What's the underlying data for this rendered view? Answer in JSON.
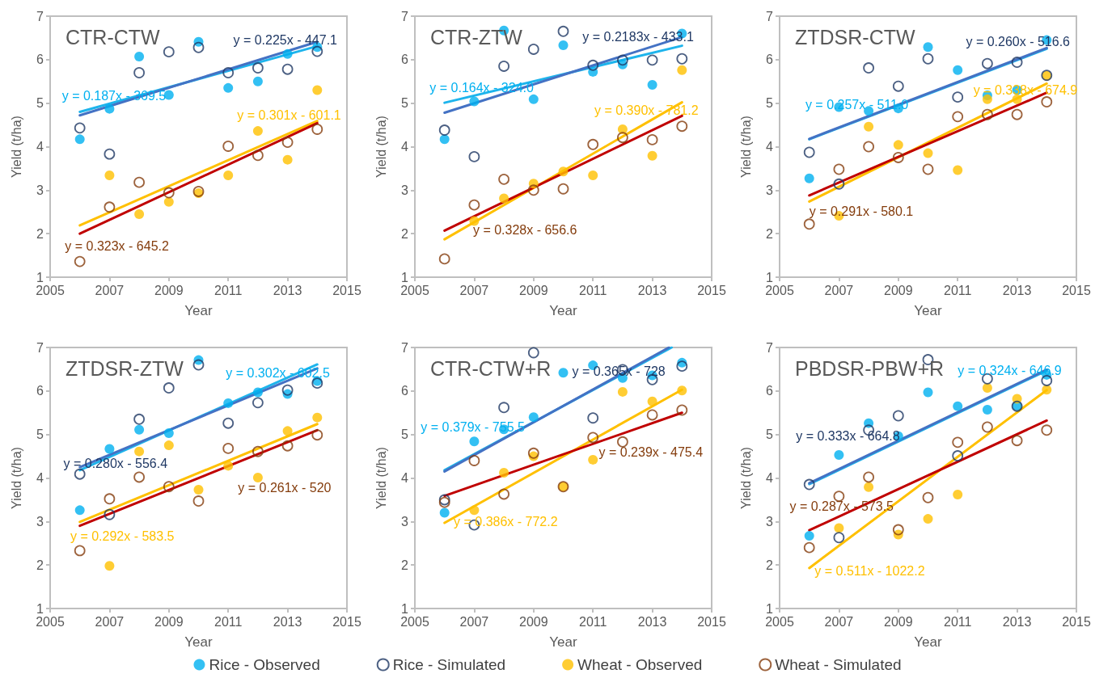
{
  "chart_data": [
    {
      "type": "scatter",
      "title": "CTR-CTW",
      "xlabel": "Year",
      "ylabel": "Yield (t/ha)",
      "x": [
        2006,
        2007,
        2008,
        2009,
        2010,
        2011,
        2012,
        2013,
        2014
      ],
      "xlim": [
        2005,
        2015
      ],
      "xticks": [
        2005,
        2007,
        2009,
        2011,
        2013,
        2015
      ],
      "ylim": [
        1,
        7
      ],
      "yticks": [
        1,
        2,
        3,
        4,
        5,
        6,
        7
      ],
      "marker": "circle",
      "series": [
        {
          "color": "#00b0f0",
          "values": [
            4.17,
            4.87,
            6.07,
            5.19,
            6.41,
            5.35,
            5.5,
            6.13,
            6.29
          ]
        },
        {
          "color": "#1f3864",
          "values": [
            4.43,
            3.83,
            5.7,
            6.18,
            6.28,
            5.7,
            5.81,
            5.78,
            6.19
          ]
        },
        {
          "color": "#ffc000",
          "values": [
            null,
            3.34,
            2.45,
            2.73,
            2.93,
            3.34,
            4.36,
            3.7,
            5.3
          ]
        },
        {
          "color": "#843c0c",
          "values": [
            1.36,
            2.61,
            3.18,
            2.94,
            2.97,
            4.01,
            3.8,
            4.1,
            4.4
          ]
        },
        {
          "type": "line",
          "marker": "none",
          "x": [
            2006,
            2014
          ],
          "color": "#1eb4ec",
          "values": [
            4.8,
            6.31
          ]
        },
        {
          "type": "line",
          "marker": "none",
          "x": [
            2006,
            2014
          ],
          "color": "#4472c4",
          "values": [
            4.72,
            6.41
          ]
        },
        {
          "type": "line",
          "marker": "none",
          "x": [
            2006,
            2014
          ],
          "color": "#ffc000",
          "values": [
            2.19,
            4.59
          ]
        },
        {
          "type": "line",
          "marker": "none",
          "x": [
            2006,
            2014
          ],
          "color": "#c00000",
          "values": [
            2.0,
            4.54
          ]
        }
      ],
      "annotations": [
        "y = 0.187x - 369.5",
        "y = 0.225x - 447.1",
        "y = 0.301x - 601.1",
        "y = 0.323x - 645.2"
      ]
    },
    {
      "type": "scatter",
      "title": "CTR-ZTW",
      "xlabel": "Year",
      "ylabel": "Yield (t/ha)",
      "x": [
        2006,
        2007,
        2008,
        2009,
        2010,
        2011,
        2012,
        2013,
        2014
      ],
      "xlim": [
        2005,
        2015
      ],
      "xticks": [
        2005,
        2007,
        2009,
        2011,
        2013,
        2015
      ],
      "ylim": [
        1,
        7
      ],
      "yticks": [
        1,
        2,
        3,
        4,
        5,
        6,
        7
      ],
      "marker": "circle",
      "series": [
        {
          "color": "#00b0f0",
          "values": [
            4.17,
            5.04,
            6.67,
            5.09,
            6.33,
            5.72,
            5.89,
            5.42,
            6.6
          ]
        },
        {
          "color": "#1f3864",
          "values": [
            4.38,
            3.77,
            5.85,
            6.24,
            6.65,
            5.87,
            5.99,
            5.99,
            6.02
          ]
        },
        {
          "color": "#ffc000",
          "values": [
            null,
            2.29,
            2.81,
            3.15,
            3.43,
            3.34,
            4.4,
            3.79,
            5.76
          ]
        },
        {
          "color": "#843c0c",
          "values": [
            1.42,
            2.66,
            3.25,
            3.0,
            3.03,
            4.05,
            4.21,
            4.16,
            4.47
          ]
        },
        {
          "type": "line",
          "marker": "none",
          "x": [
            2006,
            2014
          ],
          "color": "#1eb4ec",
          "values": [
            5.01,
            6.32
          ]
        },
        {
          "type": "line",
          "marker": "none",
          "x": [
            2006,
            2014
          ],
          "color": "#4472c4",
          "values": [
            4.78,
            6.52
          ]
        },
        {
          "type": "line",
          "marker": "none",
          "x": [
            2006,
            2014
          ],
          "color": "#ffc000",
          "values": [
            1.87,
            5.02
          ]
        },
        {
          "type": "line",
          "marker": "none",
          "x": [
            2006,
            2014
          ],
          "color": "#c00000",
          "values": [
            2.07,
            4.71
          ]
        }
      ],
      "annotations": [
        "y = 0.164x - 324.0",
        "y = 0.2183x - 433.1",
        "y = 0.390x - 781.2",
        "y = 0.328x - 656.6"
      ]
    },
    {
      "type": "scatter",
      "title": "ZTDSR-CTW",
      "xlabel": "Year",
      "ylabel": "Yield (t/ha)",
      "x": [
        2006,
        2007,
        2008,
        2009,
        2010,
        2011,
        2012,
        2013,
        2014
      ],
      "xlim": [
        2005,
        2015
      ],
      "xticks": [
        2005,
        2007,
        2009,
        2011,
        2013,
        2015
      ],
      "ylim": [
        1,
        7
      ],
      "yticks": [
        1,
        2,
        3,
        4,
        5,
        6,
        7
      ],
      "marker": "circle",
      "series": [
        {
          "color": "#00b0f0",
          "values": [
            3.27,
            4.91,
            4.82,
            4.88,
            6.29,
            5.76,
            5.18,
            5.3,
            6.45
          ]
        },
        {
          "color": "#1f3864",
          "values": [
            3.87,
            3.14,
            5.81,
            5.39,
            6.02,
            5.14,
            5.91,
            5.94,
            5.64
          ]
        },
        {
          "color": "#ffc000",
          "values": [
            null,
            2.41,
            4.46,
            4.04,
            3.85,
            3.46,
            5.09,
            5.09,
            5.63
          ]
        },
        {
          "color": "#843c0c",
          "values": [
            2.22,
            3.48,
            4.0,
            3.75,
            3.48,
            4.69,
            4.74,
            4.74,
            5.03
          ]
        },
        {
          "type": "line",
          "marker": "none",
          "x": [
            2006,
            2014
          ],
          "color": "#1eb4ec",
          "values": [
            4.17,
            6.25
          ]
        },
        {
          "type": "line",
          "marker": "none",
          "x": [
            2006,
            2014
          ],
          "color": "#4472c4",
          "values": [
            4.18,
            6.27
          ]
        },
        {
          "type": "line",
          "marker": "none",
          "x": [
            2006,
            2014
          ],
          "color": "#ffc000",
          "values": [
            2.74,
            5.45
          ]
        },
        {
          "type": "line",
          "marker": "none",
          "x": [
            2006,
            2014
          ],
          "color": "#c00000",
          "values": [
            2.88,
            5.24
          ]
        }
      ],
      "annotations": [
        "y = 0.257x - 511.0",
        "y = 0.260x - 516.6",
        "y = 0.338x - 674.9",
        "y = 0.291x - 580.1"
      ]
    },
    {
      "type": "scatter",
      "title": "ZTDSR-ZTW",
      "xlabel": "Year",
      "ylabel": "Yield (t/ha)",
      "x": [
        2006,
        2007,
        2008,
        2009,
        2010,
        2011,
        2012,
        2013,
        2014
      ],
      "xlim": [
        2005,
        2015
      ],
      "xticks": [
        2005,
        2007,
        2009,
        2011,
        2013,
        2015
      ],
      "ylim": [
        1,
        7
      ],
      "yticks": [
        1,
        2,
        3,
        4,
        5,
        6,
        7
      ],
      "marker": "circle",
      "series": [
        {
          "color": "#00b0f0",
          "values": [
            3.26,
            4.67,
            5.11,
            5.03,
            6.71,
            5.72,
            5.97,
            5.93,
            6.23
          ]
        },
        {
          "color": "#1f3864",
          "values": [
            4.09,
            3.16,
            5.35,
            6.07,
            6.6,
            5.26,
            5.73,
            6.02,
            6.18
          ]
        },
        {
          "color": "#ffc000",
          "values": [
            null,
            1.98,
            4.61,
            4.75,
            3.73,
            4.28,
            4.01,
            5.08,
            5.39
          ]
        },
        {
          "color": "#843c0c",
          "values": [
            2.33,
            3.52,
            4.02,
            3.8,
            3.47,
            4.68,
            4.61,
            4.74,
            4.99
          ]
        },
        {
          "type": "line",
          "marker": "none",
          "x": [
            2006,
            2014
          ],
          "color": "#1eb4ec",
          "values": [
            4.18,
            6.61
          ]
        },
        {
          "type": "line",
          "marker": "none",
          "x": [
            2006,
            2014
          ],
          "color": "#4472c4",
          "values": [
            4.25,
            6.52
          ]
        },
        {
          "type": "line",
          "marker": "none",
          "x": [
            2006,
            2014
          ],
          "color": "#ffc000",
          "values": [
            2.99,
            5.24
          ]
        },
        {
          "type": "line",
          "marker": "none",
          "x": [
            2006,
            2014
          ],
          "color": "#c00000",
          "values": [
            2.9,
            5.1
          ]
        }
      ],
      "annotations": [
        "y = 0.302x - 602.5",
        "y = 0.280x - 556.4",
        "y = 0.292x - 583.5",
        "y = 0.261x - 520"
      ]
    },
    {
      "type": "scatter",
      "title": "CTR-CTW+R",
      "xlabel": "Year",
      "ylabel": "Yield (t/ha)",
      "x": [
        2006,
        2007,
        2008,
        2009,
        2010,
        2011,
        2012,
        2013,
        2014
      ],
      "xlim": [
        2005,
        2015
      ],
      "xticks": [
        2005,
        2007,
        2009,
        2011,
        2013,
        2015
      ],
      "ylim": [
        1,
        7
      ],
      "yticks": [
        1,
        2,
        3,
        4,
        5,
        6,
        7
      ],
      "marker": "circle",
      "legend": "bottom",
      "series": [
        {
          "name": "Rice - Observed",
          "color": "#00b0f0",
          "values": [
            3.2,
            4.84,
            5.12,
            5.4,
            6.42,
            6.59,
            6.3,
            6.36,
            6.65
          ]
        },
        {
          "name": "Rice - Simulated",
          "color": "#1f3864",
          "values": [
            3.5,
            2.92,
            5.62,
            6.88,
            null,
            5.38,
            6.49,
            6.26,
            6.57
          ]
        },
        {
          "name": "Wheat - Observed",
          "color": "#ffc000",
          "values": [
            null,
            3.26,
            4.12,
            4.5,
            3.8,
            4.42,
            5.98,
            5.76,
            6.01
          ]
        },
        {
          "name": "Wheat - Simulated",
          "color": "#843c0c",
          "values": [
            3.44,
            4.4,
            3.63,
            4.57,
            3.8,
            4.93,
            4.83,
            5.45,
            5.56
          ]
        },
        {
          "type": "line",
          "marker": "none",
          "x": [
            2006,
            2013.65
          ],
          "color": "#1eb4ec",
          "values": [
            4.18,
            7
          ]
        },
        {
          "type": "line",
          "marker": "none",
          "x": [
            2006,
            2013.56
          ],
          "color": "#4472c4",
          "values": [
            4.15,
            7
          ]
        },
        {
          "type": "line",
          "marker": "none",
          "x": [
            2006,
            2014
          ],
          "color": "#ffc000",
          "values": [
            2.97,
            6.03
          ]
        },
        {
          "type": "line",
          "marker": "none",
          "x": [
            2006,
            2014
          ],
          "color": "#c00000",
          "values": [
            3.59,
            5.5
          ]
        }
      ],
      "annotations": [
        "y = 0.379x - 755.5",
        "y = 0.365x - 728",
        "y = 0.386x - 772.2",
        "y = 0.239x - 475.4"
      ]
    },
    {
      "type": "scatter",
      "title": "PBDSR-PBW+R",
      "xlabel": "Year",
      "ylabel": "Yield (t/ha)",
      "x": [
        2006,
        2007,
        2008,
        2009,
        2010,
        2011,
        2012,
        2013,
        2014
      ],
      "xlim": [
        2005,
        2015
      ],
      "xticks": [
        2005,
        2007,
        2009,
        2011,
        2013,
        2015
      ],
      "ylim": [
        1,
        7
      ],
      "yticks": [
        1,
        2,
        3,
        4,
        5,
        6,
        7
      ],
      "marker": "circle",
      "series": [
        {
          "color": "#00b0f0",
          "values": [
            2.67,
            4.53,
            5.26,
            4.96,
            5.97,
            5.65,
            5.57,
            5.66,
            6.37
          ]
        },
        {
          "color": "#1f3864",
          "values": [
            3.85,
            2.63,
            5.1,
            5.43,
            6.72,
            4.51,
            6.28,
            5.65,
            6.24
          ]
        },
        {
          "color": "#ffc000",
          "values": [
            null,
            2.85,
            3.79,
            2.7,
            3.06,
            3.62,
            6.07,
            5.82,
            6.03
          ]
        },
        {
          "color": "#843c0c",
          "values": [
            2.4,
            3.58,
            4.02,
            2.81,
            3.55,
            4.82,
            5.17,
            4.86,
            5.1
          ]
        },
        {
          "type": "line",
          "marker": "none",
          "x": [
            2006,
            2014
          ],
          "color": "#1eb4ec",
          "values": [
            3.86,
            6.47
          ]
        },
        {
          "type": "line",
          "marker": "none",
          "x": [
            2006,
            2014
          ],
          "color": "#4472c4",
          "values": [
            3.88,
            6.49
          ]
        },
        {
          "type": "line",
          "marker": "none",
          "x": [
            2006,
            2014
          ],
          "color": "#ffc000",
          "values": [
            1.93,
            6.02
          ]
        },
        {
          "type": "line",
          "marker": "none",
          "x": [
            2006,
            2014
          ],
          "color": "#c00000",
          "values": [
            2.8,
            5.32
          ]
        }
      ],
      "annotations": [
        "y = 0.324x - 646.9",
        "y = 0.333x - 664.8",
        "y = 0.511x - 1022.2",
        "y = 0.287x - 573.5"
      ]
    }
  ]
}
